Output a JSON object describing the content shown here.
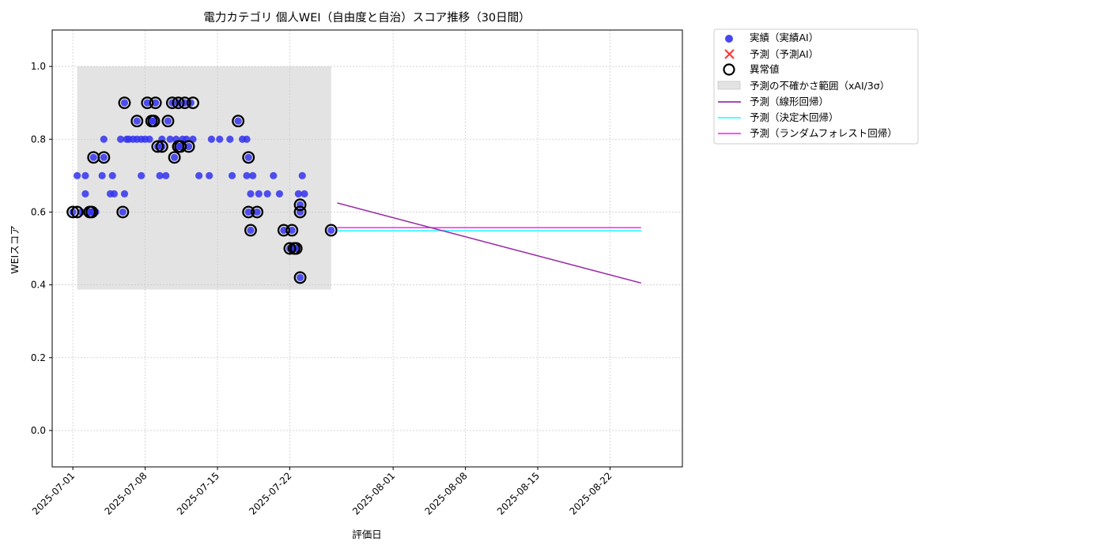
{
  "chart_data": {
    "type": "scatter",
    "title": "電力カテゴリ 個人WEI（自由度と自治）スコア推移（30日間）",
    "xlabel": "評価日",
    "ylabel": "WEIスコア",
    "xlim": [
      "2025-06-29",
      "2025-08-29"
    ],
    "ylim": [
      -0.1,
      1.1
    ],
    "grid": true,
    "legend_placement": "outside-top-right",
    "x_ticks": [
      "2025-07-01",
      "2025-07-08",
      "2025-07-15",
      "2025-07-22",
      "2025-08-01",
      "2025-08-08",
      "2025-08-15",
      "2025-08-22"
    ],
    "y_ticks": [
      "0.0",
      "0.2",
      "0.4",
      "0.6",
      "0.8",
      "1.0"
    ],
    "legend": {
      "actual": "実績（実績AI）",
      "predicted": "予測（予測AI）",
      "anomaly": "異常値",
      "uncertainty": "予測の不確かさ範囲（xAI/3σ）",
      "linear": "予測（線形回帰）",
      "tree": "予測（決定木回帰）",
      "forest": "予測（ランダムフォレスト回帰）"
    },
    "colors": {
      "actual": "#3333ee",
      "anomaly_edge": "#000000",
      "predicted": "#ff3333",
      "uncertainty": "#cccccc",
      "linear": "#9b30a8",
      "tree": "#33ffff",
      "forest": "#ff33ff",
      "grid": "#cccccc"
    },
    "uncertainty_band": {
      "x_start": "2025-07-01 10:00",
      "x_end": "2025-07-26 00:00",
      "y_low": 0.387,
      "y_high": 1.0
    },
    "actual_points": [
      [
        "2025-07-01 00:00",
        0.6
      ],
      [
        "2025-07-01 10:00",
        0.7
      ],
      [
        "2025-07-01 20:00",
        0.6
      ],
      [
        "2025-07-02 05:00",
        0.65
      ],
      [
        "2025-07-02 05:00",
        0.7
      ],
      [
        "2025-07-02 15:00",
        0.6
      ],
      [
        "2025-07-02 20:00",
        0.6
      ],
      [
        "2025-07-03 00:00",
        0.75
      ],
      [
        "2025-07-03 05:00",
        0.6
      ],
      [
        "2025-07-03 20:00",
        0.7
      ],
      [
        "2025-07-04 00:00",
        0.8
      ],
      [
        "2025-07-04 00:00",
        0.75
      ],
      [
        "2025-07-04 15:00",
        0.65
      ],
      [
        "2025-07-04 20:00",
        0.7
      ],
      [
        "2025-07-05 00:00",
        0.65
      ],
      [
        "2025-07-05 15:00",
        0.8
      ],
      [
        "2025-07-05 20:00",
        0.6
      ],
      [
        "2025-07-06 00:00",
        0.65
      ],
      [
        "2025-07-06 00:00",
        0.9
      ],
      [
        "2025-07-06 05:00",
        0.8
      ],
      [
        "2025-07-06 10:00",
        0.8
      ],
      [
        "2025-07-06 20:00",
        0.8
      ],
      [
        "2025-07-07 05:00",
        0.8
      ],
      [
        "2025-07-07 05:00",
        0.85
      ],
      [
        "2025-07-07 15:00",
        0.8
      ],
      [
        "2025-07-07 15:00",
        0.7
      ],
      [
        "2025-07-08 00:00",
        0.8
      ],
      [
        "2025-07-08 05:00",
        0.9
      ],
      [
        "2025-07-08 10:00",
        0.8
      ],
      [
        "2025-07-08 15:00",
        0.85
      ],
      [
        "2025-07-08 20:00",
        0.85
      ],
      [
        "2025-07-09 00:00",
        0.9
      ],
      [
        "2025-07-09 05:00",
        0.78
      ],
      [
        "2025-07-09 10:00",
        0.7
      ],
      [
        "2025-07-09 15:00",
        0.78
      ],
      [
        "2025-07-09 15:00",
        0.8
      ],
      [
        "2025-07-10 00:00",
        0.7
      ],
      [
        "2025-07-10 05:00",
        0.85
      ],
      [
        "2025-07-10 10:00",
        0.8
      ],
      [
        "2025-07-10 15:00",
        0.9
      ],
      [
        "2025-07-10 20:00",
        0.75
      ],
      [
        "2025-07-11 00:00",
        0.8
      ],
      [
        "2025-07-11 05:00",
        0.78
      ],
      [
        "2025-07-11 05:00",
        0.9
      ],
      [
        "2025-07-11 10:00",
        0.78
      ],
      [
        "2025-07-11 15:00",
        0.8
      ],
      [
        "2025-07-11 20:00",
        0.9
      ],
      [
        "2025-07-12 00:00",
        0.8
      ],
      [
        "2025-07-12 05:00",
        0.78
      ],
      [
        "2025-07-12 10:00",
        0.9
      ],
      [
        "2025-07-12 15:00",
        0.8
      ],
      [
        "2025-07-13 05:00",
        0.7
      ],
      [
        "2025-07-14 05:00",
        0.7
      ],
      [
        "2025-07-14 10:00",
        0.8
      ],
      [
        "2025-07-15 05:00",
        0.8
      ],
      [
        "2025-07-16 05:00",
        0.8
      ],
      [
        "2025-07-16 10:00",
        0.7
      ],
      [
        "2025-07-17 00:00",
        0.85
      ],
      [
        "2025-07-17 10:00",
        0.8
      ],
      [
        "2025-07-17 20:00",
        0.8
      ],
      [
        "2025-07-17 20:00",
        0.7
      ],
      [
        "2025-07-18 00:00",
        0.75
      ],
      [
        "2025-07-18 00:00",
        0.6
      ],
      [
        "2025-07-18 05:00",
        0.55
      ],
      [
        "2025-07-18 05:00",
        0.65
      ],
      [
        "2025-07-18 10:00",
        0.7
      ],
      [
        "2025-07-18 20:00",
        0.6
      ],
      [
        "2025-07-19 00:00",
        0.65
      ],
      [
        "2025-07-19 20:00",
        0.65
      ],
      [
        "2025-07-20 10:00",
        0.7
      ],
      [
        "2025-07-21 00:00",
        0.65
      ],
      [
        "2025-07-21 10:00",
        0.55
      ],
      [
        "2025-07-22 00:00",
        0.5
      ],
      [
        "2025-07-22 05:00",
        0.55
      ],
      [
        "2025-07-22 10:00",
        0.5
      ],
      [
        "2025-07-22 15:00",
        0.5
      ],
      [
        "2025-07-22 20:00",
        0.65
      ],
      [
        "2025-07-23 00:00",
        0.42
      ],
      [
        "2025-07-23 00:00",
        0.6
      ],
      [
        "2025-07-23 00:00",
        0.62
      ],
      [
        "2025-07-23 05:00",
        0.7
      ],
      [
        "2025-07-23 10:00",
        0.65
      ],
      [
        "2025-07-26 00:00",
        0.55
      ]
    ],
    "anomaly_points": [
      [
        "2025-07-01 00:00",
        0.6
      ],
      [
        "2025-07-01 10:00",
        0.6
      ],
      [
        "2025-07-02 15:00",
        0.6
      ],
      [
        "2025-07-02 20:00",
        0.6
      ],
      [
        "2025-07-03 00:00",
        0.75
      ],
      [
        "2025-07-04 00:00",
        0.75
      ],
      [
        "2025-07-05 20:00",
        0.6
      ],
      [
        "2025-07-06 00:00",
        0.9
      ],
      [
        "2025-07-07 05:00",
        0.85
      ],
      [
        "2025-07-08 05:00",
        0.9
      ],
      [
        "2025-07-08 15:00",
        0.85
      ],
      [
        "2025-07-08 20:00",
        0.85
      ],
      [
        "2025-07-09 00:00",
        0.9
      ],
      [
        "2025-07-09 05:00",
        0.78
      ],
      [
        "2025-07-09 15:00",
        0.78
      ],
      [
        "2025-07-10 05:00",
        0.85
      ],
      [
        "2025-07-10 15:00",
        0.9
      ],
      [
        "2025-07-10 20:00",
        0.75
      ],
      [
        "2025-07-11 05:00",
        0.78
      ],
      [
        "2025-07-11 05:00",
        0.9
      ],
      [
        "2025-07-11 10:00",
        0.78
      ],
      [
        "2025-07-11 20:00",
        0.9
      ],
      [
        "2025-07-12 05:00",
        0.78
      ],
      [
        "2025-07-12 15:00",
        0.9
      ],
      [
        "2025-07-17 00:00",
        0.85
      ],
      [
        "2025-07-18 00:00",
        0.75
      ],
      [
        "2025-07-18 00:00",
        0.6
      ],
      [
        "2025-07-18 05:00",
        0.55
      ],
      [
        "2025-07-18 20:00",
        0.6
      ],
      [
        "2025-07-21 10:00",
        0.55
      ],
      [
        "2025-07-22 00:00",
        0.5
      ],
      [
        "2025-07-22 05:00",
        0.55
      ],
      [
        "2025-07-22 10:00",
        0.5
      ],
      [
        "2025-07-22 15:00",
        0.5
      ],
      [
        "2025-07-23 00:00",
        0.42
      ],
      [
        "2025-07-23 00:00",
        0.6
      ],
      [
        "2025-07-23 00:00",
        0.62
      ],
      [
        "2025-07-26 00:00",
        0.55
      ]
    ],
    "predicted_points": [],
    "prediction_lines": {
      "linear": [
        [
          "2025-07-26 14:00",
          0.625
        ],
        [
          "2025-08-25 00:00",
          0.405
        ]
      ],
      "tree": [
        [
          "2025-07-26 14:00",
          0.549
        ],
        [
          "2025-08-25 00:00",
          0.549
        ]
      ],
      "forest": [
        [
          "2025-07-26 14:00",
          0.557
        ],
        [
          "2025-08-25 00:00",
          0.557
        ]
      ]
    }
  }
}
